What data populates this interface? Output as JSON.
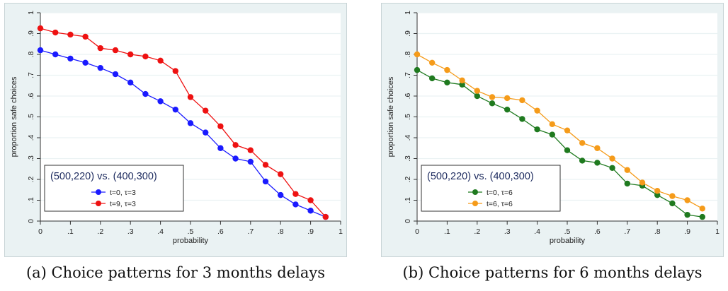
{
  "chart_data": [
    {
      "type": "line",
      "xlabel": "probability",
      "ylabel": "proportion safe choices",
      "xlim": [
        0,
        1
      ],
      "ylim": [
        0,
        1
      ],
      "xticks": [
        "0",
        ".1",
        ".2",
        ".3",
        ".4",
        ".5",
        ".6",
        ".7",
        ".8",
        ".9",
        "1"
      ],
      "yticks": [
        "0",
        ".1",
        ".2",
        ".3",
        ".4",
        ".5",
        ".6",
        ".7",
        ".8",
        ".9",
        "1"
      ],
      "legend_title": "(500,220) vs. (400,300)",
      "legend_placement": "bottom-left",
      "x": [
        0,
        0.05,
        0.1,
        0.15,
        0.2,
        0.25,
        0.3,
        0.35,
        0.4,
        0.45,
        0.5,
        0.55,
        0.6,
        0.65,
        0.7,
        0.75,
        0.8,
        0.85,
        0.9,
        0.95
      ],
      "series": [
        {
          "name": "t=0, τ=3",
          "color": "#1a1aff",
          "values": [
            0.82,
            0.8,
            0.78,
            0.76,
            0.735,
            0.705,
            0.665,
            0.61,
            0.575,
            0.535,
            0.47,
            0.425,
            0.35,
            0.3,
            0.285,
            0.19,
            0.125,
            0.08,
            0.05,
            0.02
          ]
        },
        {
          "name": "t=9, τ=3",
          "color": "#ee1111",
          "values": [
            0.925,
            0.905,
            0.895,
            0.885,
            0.83,
            0.82,
            0.8,
            0.79,
            0.77,
            0.72,
            0.595,
            0.53,
            0.455,
            0.365,
            0.34,
            0.27,
            0.225,
            0.13,
            0.1,
            0.02
          ]
        }
      ]
    },
    {
      "type": "line",
      "xlabel": "probability",
      "ylabel": "proportion safe choices",
      "xlim": [
        0,
        1
      ],
      "ylim": [
        0,
        1
      ],
      "xticks": [
        "0",
        ".1",
        ".2",
        ".3",
        ".4",
        ".5",
        ".6",
        ".7",
        ".8",
        ".9",
        "1"
      ],
      "yticks": [
        "0",
        ".1",
        ".2",
        ".3",
        ".4",
        ".5",
        ".6",
        ".7",
        ".8",
        ".9",
        "1"
      ],
      "legend_title": "(500,220) vs. (400,300)",
      "legend_placement": "bottom-left",
      "x": [
        0,
        0.05,
        0.1,
        0.15,
        0.2,
        0.25,
        0.3,
        0.35,
        0.4,
        0.45,
        0.5,
        0.55,
        0.6,
        0.65,
        0.7,
        0.75,
        0.8,
        0.85,
        0.9,
        0.95
      ],
      "series": [
        {
          "name": "t=0, τ=6",
          "color": "#1f7a1f",
          "values": [
            0.725,
            0.685,
            0.665,
            0.655,
            0.6,
            0.565,
            0.535,
            0.49,
            0.44,
            0.415,
            0.34,
            0.29,
            0.28,
            0.255,
            0.18,
            0.17,
            0.125,
            0.085,
            0.03,
            0.02
          ]
        },
        {
          "name": "t=6, τ=6",
          "color": "#f59b1a",
          "values": [
            0.8,
            0.76,
            0.725,
            0.675,
            0.625,
            0.595,
            0.59,
            0.58,
            0.53,
            0.465,
            0.435,
            0.375,
            0.35,
            0.3,
            0.245,
            0.185,
            0.145,
            0.12,
            0.1,
            0.06
          ]
        }
      ]
    }
  ],
  "captions": {
    "a": "(a) Choice patterns for 3 months delays",
    "b": "(b) Choice patterns for 6 months delays"
  }
}
